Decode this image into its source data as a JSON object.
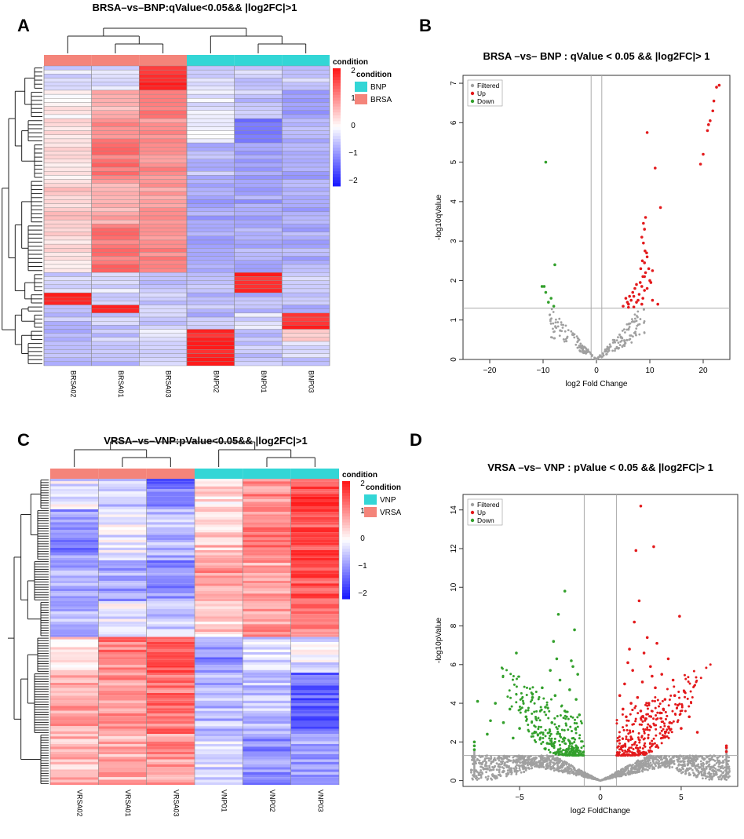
{
  "panels": {
    "a": "A",
    "b": "B",
    "c": "C",
    "d": "D"
  },
  "colors": {
    "up": "#e31a1c",
    "down": "#33a02c",
    "filtered": "#a0a0a0",
    "brsa": "#f4847a",
    "bnp": "#33d6d6",
    "high": "#ff1a1a",
    "mid": "#ffffff",
    "low": "#1a1aff",
    "cell_border": "#909090"
  },
  "chart_data": [
    {
      "type": "heatmap",
      "title": "BRSA–vs–BNP:qValue<0.05&& |log2FC|>1",
      "samples": [
        "BRSA02",
        "BRSA01",
        "BRSA03",
        "BNP02",
        "BNP01",
        "BNP03"
      ],
      "sample_groups": [
        "BRSA",
        "BRSA",
        "BRSA",
        "BNP",
        "BNP",
        "BNP"
      ],
      "legend_title": "condition",
      "legend_entries": [
        "BNP",
        "BRSA"
      ],
      "color_scale": {
        "min": -2,
        "max": 2,
        "ticks": [
          "2",
          "1",
          "0",
          "−1",
          "−2"
        ]
      },
      "row_count": 74,
      "row_blocks": [
        {
          "rows": 6,
          "values": [
            -0.3,
            -0.3,
            1.9,
            -0.4,
            -0.4,
            -0.4
          ]
        },
        {
          "rows": 7,
          "values": [
            0.1,
            0.7,
            1.1,
            -0.2,
            -0.5,
            -1.0
          ]
        },
        {
          "rows": 6,
          "values": [
            0.2,
            1.0,
            0.9,
            0.0,
            -1.1,
            -0.6
          ]
        },
        {
          "rows": 9,
          "values": [
            0.3,
            1.2,
            1.0,
            -0.6,
            -0.9,
            -0.8
          ]
        },
        {
          "rows": 11,
          "values": [
            0.4,
            0.7,
            0.9,
            -0.8,
            -0.8,
            -0.8
          ]
        },
        {
          "rows": 12,
          "values": [
            0.3,
            1.2,
            1.0,
            -0.7,
            -0.7,
            -0.7
          ]
        },
        {
          "rows": 5,
          "values": [
            -0.4,
            -0.3,
            -0.5,
            -0.6,
            1.9,
            -0.4
          ]
        },
        {
          "rows": 3,
          "values": [
            2.0,
            -0.4,
            -0.5,
            -0.6,
            -0.6,
            -0.5
          ]
        },
        {
          "rows": 2,
          "values": [
            -0.4,
            1.9,
            -0.5,
            -0.6,
            -0.7,
            -0.6
          ]
        },
        {
          "rows": 4,
          "values": [
            -0.5,
            -0.5,
            -0.5,
            -0.6,
            -0.3,
            1.9
          ]
        },
        {
          "rows": 3,
          "values": [
            -0.6,
            -0.5,
            -0.2,
            1.8,
            -0.6,
            0.3
          ]
        },
        {
          "rows": 6,
          "values": [
            -0.5,
            -0.5,
            -0.5,
            2.0,
            -0.5,
            -0.4
          ]
        }
      ]
    },
    {
      "type": "scatter",
      "title": "BRSA –vs– BNP : qValue < 0.05 && |log2FC|> 1",
      "xlabel": "log2 Fold Change",
      "ylabel": "-log10qValue",
      "xlim": [
        -25,
        25
      ],
      "ylim": [
        0,
        7.2
      ],
      "x_ticks": [
        -20,
        -10,
        0,
        10,
        20
      ],
      "y_ticks": [
        0,
        1,
        2,
        3,
        4,
        5,
        6,
        7
      ],
      "x_ticklabels": [
        "−20",
        "−10",
        "0",
        "10",
        "20"
      ],
      "y_ticklabels": [
        "0",
        "1",
        "2",
        "3",
        "4",
        "5",
        "6",
        "7"
      ],
      "hline": 1.3,
      "vlines": [
        -1,
        1
      ],
      "legend": [
        "Filtered",
        "Up",
        "Down"
      ],
      "series": [
        {
          "name": "Up",
          "points": [
            [
              23,
              6.95
            ],
            [
              22.5,
              6.9
            ],
            [
              22,
              6.55
            ],
            [
              21.8,
              6.3
            ],
            [
              21.3,
              6.05
            ],
            [
              21,
              5.95
            ],
            [
              20.8,
              5.8
            ],
            [
              20,
              5.2
            ],
            [
              19.5,
              4.95
            ],
            [
              9.5,
              5.75
            ],
            [
              11,
              4.85
            ],
            [
              12,
              3.85
            ],
            [
              9.2,
              3.6
            ],
            [
              8.8,
              3.45
            ],
            [
              9,
              3.3
            ],
            [
              8.5,
              3.1
            ],
            [
              8.8,
              2.95
            ],
            [
              9.5,
              2.6
            ],
            [
              8.6,
              2.5
            ],
            [
              9,
              2.45
            ],
            [
              10.5,
              2.25
            ],
            [
              10,
              2.0
            ],
            [
              9,
              2.1
            ],
            [
              8.2,
              1.95
            ],
            [
              7.5,
              1.9
            ],
            [
              8.5,
              1.85
            ],
            [
              7.2,
              1.8
            ],
            [
              9,
              1.75
            ],
            [
              6.8,
              1.7
            ],
            [
              8,
              1.65
            ],
            [
              7,
              1.6
            ],
            [
              5.5,
              1.55
            ],
            [
              6.5,
              1.5
            ],
            [
              7.5,
              1.45
            ],
            [
              6,
              1.4
            ],
            [
              8.5,
              1.4
            ],
            [
              5,
              1.35
            ],
            [
              6,
              1.32
            ],
            [
              7,
              1.33
            ],
            [
              9.5,
              1.8
            ],
            [
              10.2,
              1.95
            ],
            [
              9.8,
              2.3
            ],
            [
              9.2,
              2.2
            ],
            [
              8.7,
              1.55
            ],
            [
              7.8,
              1.5
            ],
            [
              11.5,
              1.4
            ],
            [
              6.2,
              1.6
            ],
            [
              10.5,
              1.5
            ],
            [
              5.8,
              1.45
            ],
            [
              8.3,
              2.3
            ],
            [
              9.4,
              2.7
            ],
            [
              9.1,
              2.75
            ],
            [
              8.7,
              2.1
            ]
          ]
        },
        {
          "name": "Down",
          "points": [
            [
              -9.5,
              5.0
            ],
            [
              -7.8,
              2.4
            ],
            [
              -10.2,
              1.85
            ],
            [
              -9.8,
              1.85
            ],
            [
              -9.5,
              1.7
            ],
            [
              -8.5,
              1.55
            ],
            [
              -9,
              1.45
            ],
            [
              -8,
              1.35
            ]
          ]
        }
      ]
    },
    {
      "type": "heatmap",
      "title": "VRSA–vs–VNP:pValue<0.05&& |log2FC|>1",
      "samples": [
        "VRSA02",
        "VRSA01",
        "VRSA03",
        "VNP01",
        "VNP02",
        "VNP03"
      ],
      "sample_groups": [
        "VRSA",
        "VRSA",
        "VRSA",
        "VNP",
        "VNP",
        "VNP"
      ],
      "legend_title": "condition",
      "legend_entries": [
        "VNP",
        "VRSA"
      ],
      "color_scale": {
        "min": -2,
        "max": 2,
        "ticks": [
          "2",
          "1",
          "0",
          "−1",
          "−2"
        ]
      },
      "row_count": 120,
      "row_blocks": [
        {
          "rows": 12,
          "values": [
            -0.2,
            -0.4,
            -1.2,
            0.3,
            1.0,
            1.6
          ]
        },
        {
          "rows": 20,
          "values": [
            -1.0,
            -0.2,
            -0.6,
            0.5,
            1.1,
            1.5
          ]
        },
        {
          "rows": 16,
          "values": [
            -0.8,
            -0.8,
            -1.0,
            0.9,
            0.8,
            1.5
          ]
        },
        {
          "rows": 14,
          "values": [
            -0.6,
            -0.2,
            -0.5,
            0.4,
            0.9,
            1.2
          ]
        },
        {
          "rows": 14,
          "values": [
            0.4,
            1.1,
            1.4,
            -1.0,
            -0.3,
            -0.2
          ]
        },
        {
          "rows": 24,
          "values": [
            0.8,
            0.9,
            1.2,
            -0.6,
            -0.5,
            -1.4
          ]
        },
        {
          "rows": 20,
          "values": [
            0.6,
            0.7,
            0.9,
            -0.3,
            -1.0,
            -0.8
          ]
        }
      ]
    },
    {
      "type": "scatter",
      "title": "VRSA –vs– VNP : pValue < 0.05 && |log2FC|> 1",
      "xlabel": "log2 FoldChange",
      "ylabel": "-log10pValue",
      "xlim": [
        -8.5,
        8.5
      ],
      "ylim": [
        -0.3,
        14.8
      ],
      "x_ticks": [
        -5,
        0,
        5
      ],
      "y_ticks": [
        0,
        2,
        4,
        6,
        8,
        10,
        12,
        14
      ],
      "x_ticklabels": [
        "−5",
        "0",
        "5"
      ],
      "y_ticklabels": [
        "0",
        "2",
        "4",
        "6",
        "8",
        "10",
        "12",
        "14"
      ],
      "hline": 1.3,
      "vlines": [
        -1,
        1
      ],
      "legend": [
        "Filtered",
        "Up",
        "Down"
      ],
      "series": [
        {
          "name": "Up",
          "points": [
            [
              2.5,
              14.2
            ],
            [
              2.2,
              11.9
            ],
            [
              3.3,
              12.1
            ],
            [
              2.4,
              9.3
            ],
            [
              4.9,
              8.5
            ],
            [
              2.1,
              8.2
            ],
            [
              3.5,
              7.1
            ],
            [
              1.8,
              6.8
            ],
            [
              2.7,
              6.6
            ],
            [
              4.2,
              6.3
            ],
            [
              3.1,
              5.9
            ],
            [
              2.0,
              5.7
            ],
            [
              3.8,
              5.5
            ],
            [
              4.5,
              5.2
            ],
            [
              1.5,
              5.0
            ],
            [
              2.6,
              5.1
            ],
            [
              3.4,
              4.8
            ],
            [
              5.2,
              4.6
            ],
            [
              1.2,
              4.4
            ],
            [
              2.3,
              4.3
            ],
            [
              4.0,
              4.2
            ],
            [
              1.9,
              4.0
            ],
            [
              3.0,
              4.0
            ],
            [
              4.8,
              3.9
            ],
            [
              1.4,
              3.7
            ],
            [
              2.5,
              3.6
            ],
            [
              3.7,
              3.5
            ],
            [
              5.5,
              3.3
            ],
            [
              1.6,
              3.3
            ],
            [
              2.8,
              3.2
            ],
            [
              4.3,
              3.0
            ],
            [
              5.0,
              2.7
            ],
            [
              6.0,
              2.5
            ],
            [
              7.8,
              1.8
            ],
            [
              7.8,
              1.5
            ],
            [
              7.8,
              1.7
            ],
            [
              4.6,
              4.4
            ],
            [
              3.9,
              3.7
            ],
            [
              3.2,
              5.4
            ],
            [
              2.9,
              7.4
            ],
            [
              1.7,
              6.1
            ]
          ]
        },
        {
          "name": "Down",
          "points": [
            [
              -2.2,
              9.8
            ],
            [
              -2.6,
              8.6
            ],
            [
              -1.6,
              7.8
            ],
            [
              -2.9,
              7.2
            ],
            [
              -5.2,
              6.6
            ],
            [
              -1.8,
              6.2
            ],
            [
              -3.1,
              5.7
            ],
            [
              -1.4,
              5.5
            ],
            [
              -2.5,
              5.2
            ],
            [
              -3.6,
              4.8
            ],
            [
              -1.9,
              4.7
            ],
            [
              -4.2,
              4.3
            ],
            [
              -2.8,
              4.4
            ],
            [
              -1.5,
              4.2
            ],
            [
              -6.5,
              4.0
            ],
            [
              -7.6,
              4.1
            ],
            [
              -3.4,
              3.8
            ],
            [
              -5.6,
              3.7
            ],
            [
              -2.2,
              3.6
            ],
            [
              -4.6,
              3.3
            ],
            [
              -1.3,
              3.4
            ],
            [
              -6.0,
              3.0
            ],
            [
              -3.0,
              3.0
            ],
            [
              -5.0,
              2.7
            ],
            [
              -7.0,
              2.4
            ],
            [
              -7.8,
              1.8
            ],
            [
              -7.8,
              1.6
            ],
            [
              -7.8,
              2.0
            ],
            [
              -4.0,
              2.5
            ],
            [
              -6.8,
              3.1
            ],
            [
              -5.4,
              2.2
            ],
            [
              -1.7,
              5.9
            ],
            [
              -2.7,
              6.3
            ]
          ]
        }
      ]
    }
  ]
}
